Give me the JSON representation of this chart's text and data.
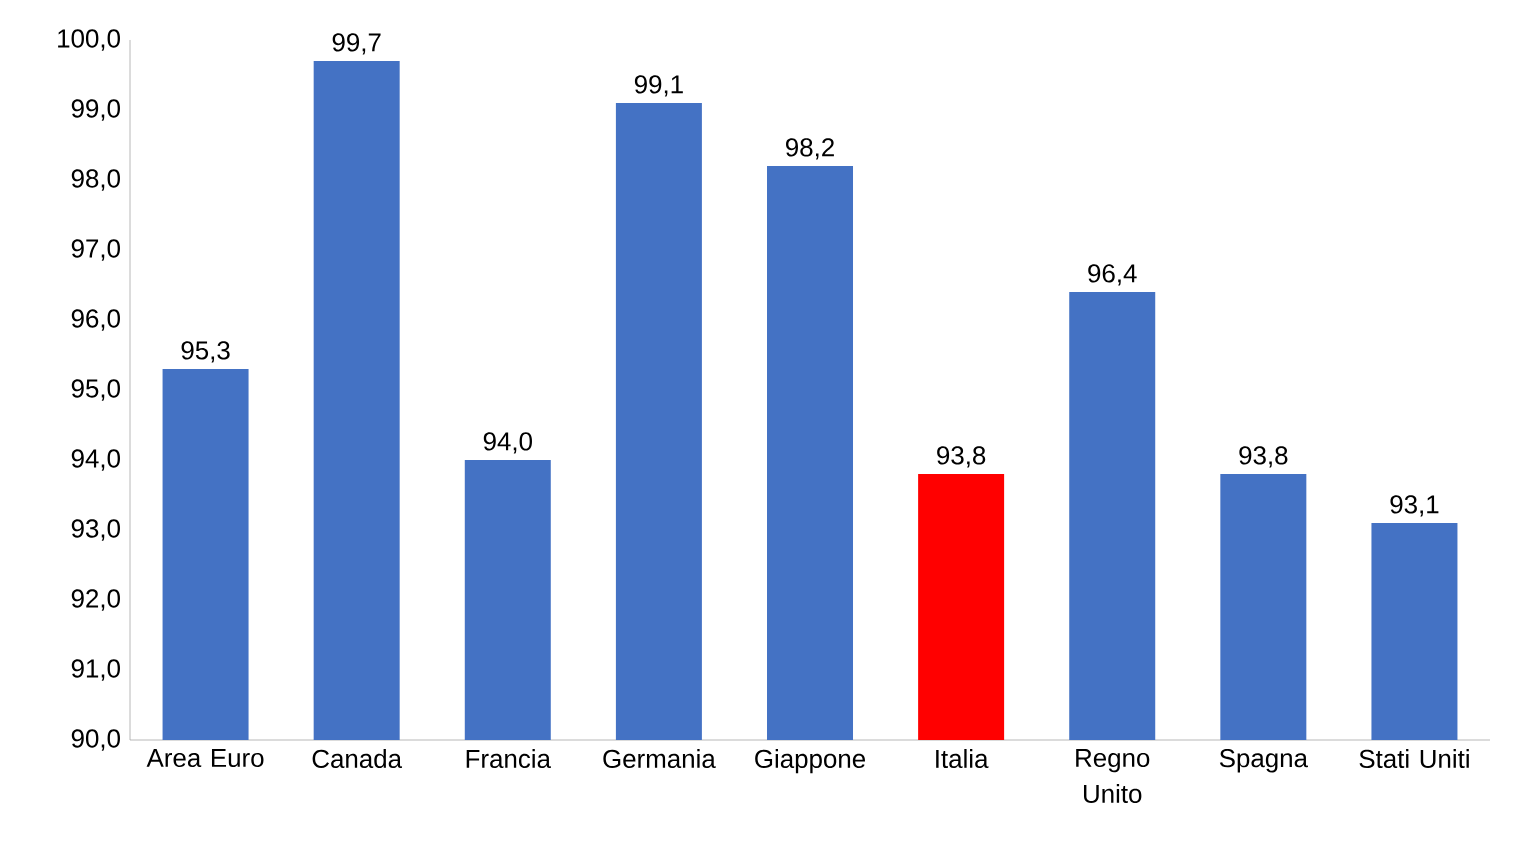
{
  "chart_data": {
    "type": "bar",
    "categories": [
      "Area Euro",
      "Canada",
      "Francia",
      "Germania",
      "Giappone",
      "Italia",
      "Regno Unito",
      "Spagna",
      "Stati Uniti"
    ],
    "values": [
      95.3,
      99.7,
      94.0,
      99.1,
      98.2,
      93.8,
      96.4,
      93.8,
      93.1
    ],
    "value_labels": [
      "95,3",
      "99,7",
      "94,0",
      "99,1",
      "98,2",
      "93,8",
      "96,4",
      "93,8",
      "93,1"
    ],
    "colors": [
      "#4472c4",
      "#4472c4",
      "#4472c4",
      "#4472c4",
      "#4472c4",
      "#ff0000",
      "#4472c4",
      "#4472c4",
      "#4472c4"
    ],
    "ylim": [
      90,
      100
    ],
    "yticks": [
      {
        "value": 90,
        "label": "90,0"
      },
      {
        "value": 91,
        "label": "91,0"
      },
      {
        "value": 92,
        "label": "92,0"
      },
      {
        "value": 93,
        "label": "93,0"
      },
      {
        "value": 94,
        "label": "94,0"
      },
      {
        "value": 95,
        "label": "95,0"
      },
      {
        "value": 96,
        "label": "96,0"
      },
      {
        "value": 97,
        "label": "97,0"
      },
      {
        "value": 98,
        "label": "98,0"
      },
      {
        "value": 99,
        "label": "99,0"
      },
      {
        "value": 100,
        "label": "100,0"
      }
    ]
  }
}
